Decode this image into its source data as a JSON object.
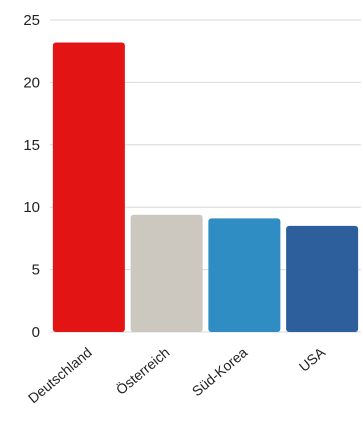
{
  "chart_data": {
    "type": "bar",
    "categories": [
      "Deutschland",
      "Österreich",
      "Süd-Korea",
      "USA"
    ],
    "values": [
      23.2,
      9.4,
      9.1,
      8.5
    ],
    "colors": [
      "#e31414",
      "#ccc8c0",
      "#2f8dc3",
      "#2c5f9b"
    ],
    "ylim": [
      0,
      25
    ],
    "yticks": [
      0,
      5,
      10,
      15,
      20,
      25
    ],
    "grid": true,
    "legend": "none"
  }
}
